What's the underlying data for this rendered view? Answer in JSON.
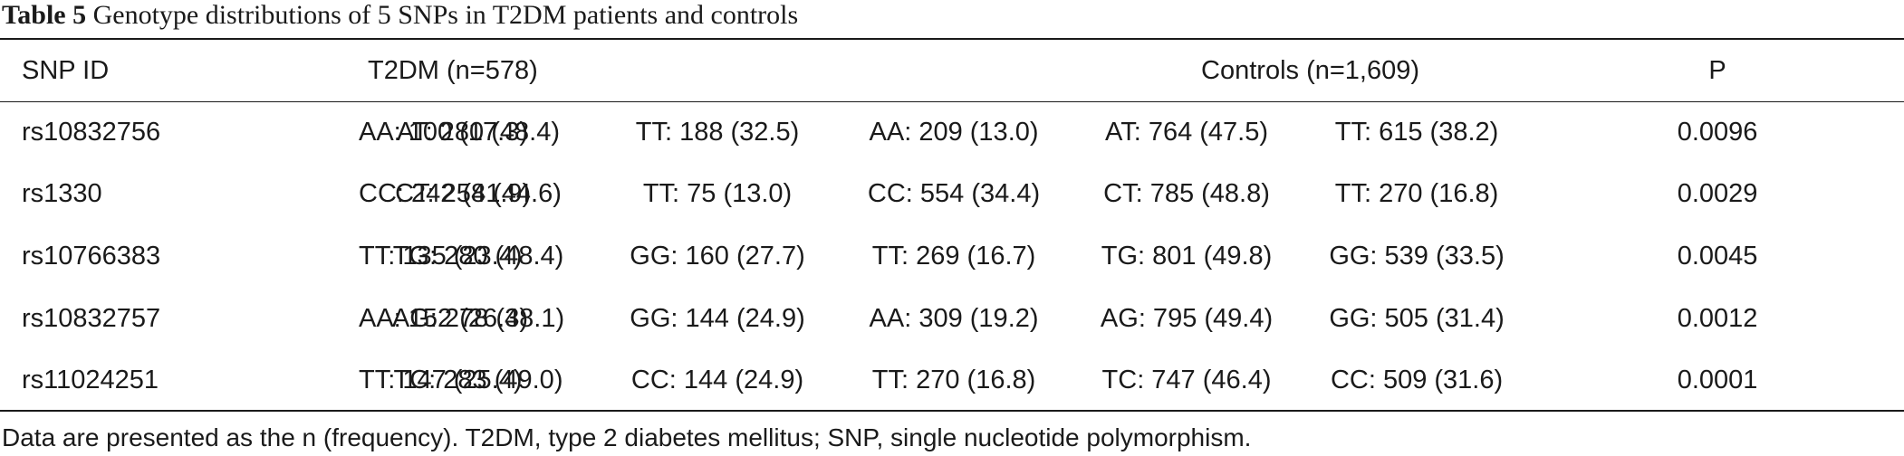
{
  "caption": {
    "label": "Table 5",
    "text": "Genotype distributions of 5 SNPs in T2DM patients and controls"
  },
  "header": {
    "snp_id": "SNP ID",
    "t2dm": "T2DM (n=578)",
    "controls": "Controls (n=1,609)",
    "p": "P"
  },
  "rows": [
    {
      "snp": "rs10832756",
      "t2dm": [
        "AA: 100 (17.3)",
        "AT: 280 (48.4)",
        "TT: 188 (32.5)"
      ],
      "controls": [
        "AA: 209 (13.0)",
        "AT: 764 (47.5)",
        "TT: 615 (38.2)"
      ],
      "p": "0.0096"
    },
    {
      "snp": "rs1330",
      "t2dm": [
        "CC: 242 (41.9)",
        "CT: 258 (44.6)",
        "TT: 75 (13.0)"
      ],
      "controls": [
        "CC: 554 (34.4)",
        "CT: 785 (48.8)",
        "TT: 270 (16.8)"
      ],
      "p": "0.0029"
    },
    {
      "snp": "rs10766383",
      "t2dm": [
        "TT: 135 (23.4)",
        "TG: 280 (48.4)",
        "GG: 160 (27.7)"
      ],
      "controls": [
        "TT: 269 (16.7)",
        "TG: 801 (49.8)",
        "GG: 539 (33.5)"
      ],
      "p": "0.0045"
    },
    {
      "snp": "rs10832757",
      "t2dm": [
        "AA: 152 (26.3)",
        "AG: 278 (48.1)",
        "GG: 144 (24.9)"
      ],
      "controls": [
        "AA: 309 (19.2)",
        "AG: 795 (49.4)",
        "GG: 505 (31.4)"
      ],
      "p": "0.0012"
    },
    {
      "snp": "rs11024251",
      "t2dm": [
        "TT: 147 (25.4)",
        "TC: 283 (49.0)",
        "CC: 144 (24.9)"
      ],
      "controls": [
        "TT: 270 (16.8)",
        "TC: 747 (46.4)",
        "CC: 509 (31.6)"
      ],
      "p": "0.0001"
    }
  ],
  "footnote": "Data are presented as the n (frequency). T2DM, type 2 diabetes mellitus; SNP, single nucleotide polymorphism."
}
